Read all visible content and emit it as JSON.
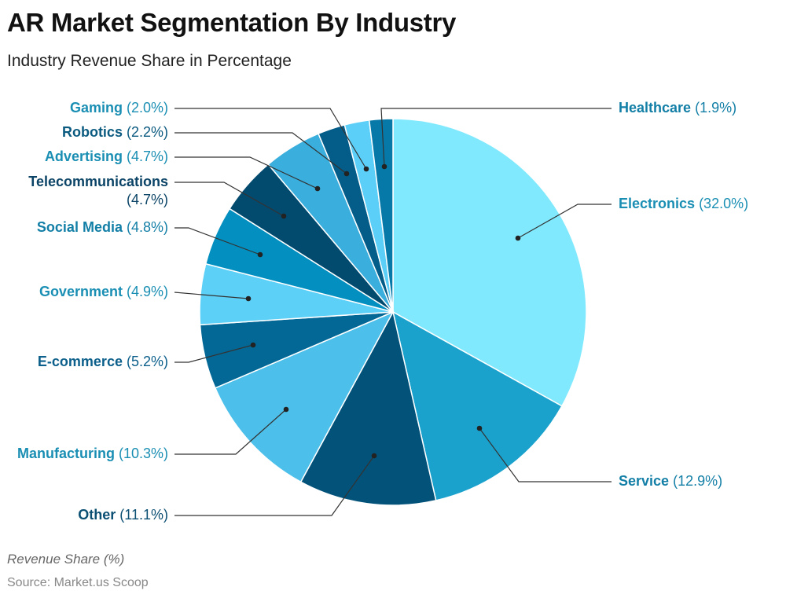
{
  "title": "AR Market Segmentation By Industry",
  "subtitle": "Industry Revenue Share in Percentage",
  "footer_label": "Revenue Share (%)",
  "source": "Source: Market.us Scoop",
  "chart_data": {
    "type": "pie",
    "title": "AR Market Segmentation By Industry",
    "subtitle": "Industry Revenue Share in Percentage",
    "start": "12 o'clock, clockwise",
    "slices": [
      {
        "label": "Electronics",
        "value": 32.0,
        "pct_text": "(32.0%)",
        "color": "#80e9fd",
        "label_color": "#1a8fb3"
      },
      {
        "label": "Service",
        "value": 12.9,
        "pct_text": "(12.9%)",
        "color": "#1aa2cd",
        "label_color": "#137fa6"
      },
      {
        "label": "Other",
        "value": 11.1,
        "pct_text": "(11.1%)",
        "color": "#03527a",
        "label_color": "#0b4f73"
      },
      {
        "label": "Manufacturing",
        "value": 10.3,
        "pct_text": "(10.3%)",
        "color": "#4cc0ea",
        "label_color": "#1a8fb3"
      },
      {
        "label": "E-commerce",
        "value": 5.2,
        "pct_text": "(5.2%)",
        "color": "#046896",
        "label_color": "#0b5f8a"
      },
      {
        "label": "Government",
        "value": 4.9,
        "pct_text": "(4.9%)",
        "color": "#5dd0f7",
        "label_color": "#1a8fb3"
      },
      {
        "label": "Social Media",
        "value": 4.8,
        "pct_text": "(4.8%)",
        "color": "#0390c0",
        "label_color": "#137fa6"
      },
      {
        "label": "Telecommunications",
        "value": 4.7,
        "pct_text": "(4.7%)",
        "color": "#034a6f",
        "label_color": "#0b4466"
      },
      {
        "label": "Advertising",
        "value": 4.7,
        "pct_text": "(4.7%)",
        "color": "#3aaedc",
        "label_color": "#1a8fb3"
      },
      {
        "label": "Robotics",
        "value": 2.2,
        "pct_text": "(2.2%)",
        "color": "#045c88",
        "label_color": "#0b5a80"
      },
      {
        "label": "Gaming",
        "value": 2.0,
        "pct_text": "(2.0%)",
        "color": "#5ccff8",
        "label_color": "#1a8fb3"
      },
      {
        "label": "Healthcare",
        "value": 1.9,
        "pct_text": "(1.9%)",
        "color": "#0779a8",
        "label_color": "#137fa6"
      }
    ]
  }
}
